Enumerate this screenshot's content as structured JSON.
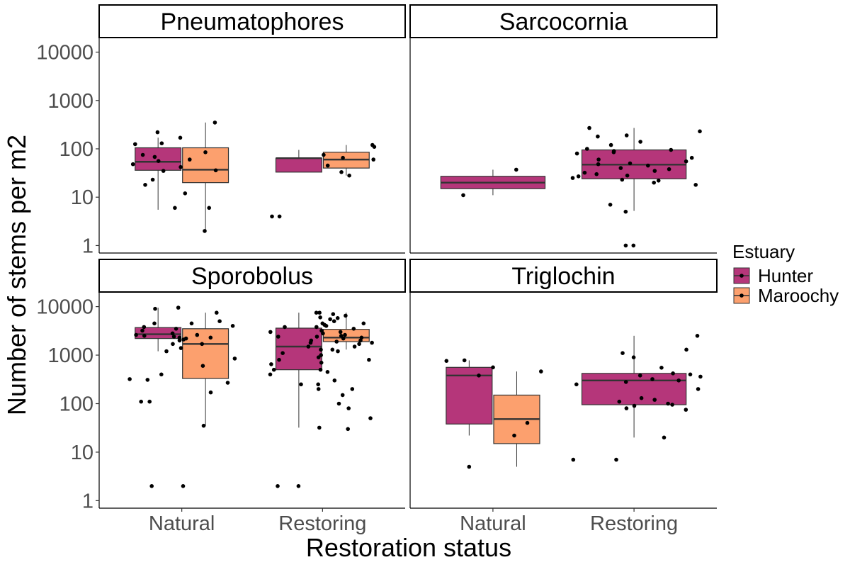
{
  "chart_data": {
    "type": "box",
    "xlabel": "Restoration status",
    "ylabel": "Number of stems per m2",
    "y_scale": "log10",
    "ylim": [
      0.7,
      20000
    ],
    "y_ticks": [
      1,
      10,
      100,
      1000,
      10000
    ],
    "y_tick_labels": [
      "1",
      "10",
      "100",
      "1000",
      "10000"
    ],
    "categories": [
      "Natural",
      "Restoring"
    ],
    "legend": {
      "title": "Estuary",
      "position": "right",
      "items": [
        {
          "name": "Hunter",
          "color": "#b5367a"
        },
        {
          "name": "Maroochy",
          "color": "#fca06e"
        }
      ]
    },
    "grid": false,
    "panels": [
      {
        "name": "Pneumatophores",
        "boxes": [
          {
            "category": "Natural",
            "series": "Hunter",
            "min": 5.5,
            "q1": 36,
            "median": 54,
            "q3": 105,
            "max": 170
          },
          {
            "category": "Natural",
            "series": "Maroochy",
            "min": 2,
            "q1": 20,
            "median": 37,
            "q3": 105,
            "max": 350
          },
          {
            "category": "Restoring",
            "series": "Hunter",
            "min": 33,
            "q1": 33,
            "median": 64,
            "q3": 64,
            "max": 95
          },
          {
            "category": "Restoring",
            "series": "Maroochy",
            "min": 28,
            "q1": 40,
            "median": 60,
            "q3": 85,
            "max": 120
          }
        ],
        "points": [
          {
            "category": "Natural",
            "series": "Hunter",
            "values": [
              220,
              130,
              125,
              75,
              68,
              56,
              48,
              42,
              35,
              23,
              18,
              6
            ]
          },
          {
            "category": "Natural",
            "series": "Maroochy",
            "values": [
              350,
              170,
              85,
              60,
              36,
              12,
              6,
              2
            ]
          },
          {
            "category": "Restoring",
            "series": "Hunter",
            "values": [
              4,
              4
            ]
          },
          {
            "category": "Restoring",
            "series": "Maroochy",
            "values": [
              120,
              110,
              75,
              65,
              60,
              45,
              33,
              28
            ]
          }
        ]
      },
      {
        "name": "Sarcocornia",
        "boxes": [
          {
            "category": "Natural",
            "series": "Hunter",
            "min": 11,
            "q1": 15,
            "median": 20,
            "q3": 27,
            "max": 37
          }
        ],
        "points": [
          {
            "category": "Natural",
            "series": "Hunter",
            "values": [
              37,
              11
            ]
          },
          {
            "category": "Restoring",
            "series": "Hunter",
            "values": [
              270,
              230,
              190,
              180,
              140,
              120,
              100,
              95,
              90,
              85,
              80,
              65,
              60,
              55,
              50,
              48,
              45,
              40,
              38,
              35,
              32,
              30,
              28,
              27,
              25,
              23,
              22,
              20,
              18,
              7,
              5,
              1,
              1
            ]
          }
        ],
        "boxes_restoring": [
          {
            "category": "Restoring",
            "series": "Hunter",
            "min": 5.2,
            "q1": 24,
            "median": 47,
            "q3": 95,
            "max": 270
          }
        ]
      },
      {
        "name": "Sporobolus",
        "boxes": [
          {
            "category": "Natural",
            "series": "Hunter",
            "min": 1200,
            "q1": 2200,
            "median": 2700,
            "q3": 3700,
            "max": 9500
          },
          {
            "category": "Natural",
            "series": "Maroochy",
            "min": 35,
            "q1": 330,
            "median": 1700,
            "q3": 3500,
            "max": 7500
          },
          {
            "category": "Restoring",
            "series": "Hunter",
            "min": 32,
            "q1": 500,
            "median": 1500,
            "q3": 3600,
            "max": 7500
          },
          {
            "category": "Restoring",
            "series": "Maroochy",
            "min": 1300,
            "q1": 1900,
            "median": 2300,
            "q3": 3400,
            "max": 7500
          }
        ],
        "points": [
          {
            "category": "Natural",
            "series": "Hunter",
            "values": [
              9500,
              9000,
              4500,
              3800,
              3200,
              2800,
              2600,
              2500,
              2400,
              2300,
              2200,
              2100,
              2000,
              1700,
              1200,
              400,
              320,
              310,
              110,
              110,
              2
            ]
          },
          {
            "category": "Natural",
            "series": "Maroochy",
            "values": [
              7500,
              5000,
              4500,
              4000,
              3500,
              2600,
              2300,
              1700,
              1400,
              850,
              600,
              270,
              170,
              35,
              2
            ]
          },
          {
            "category": "Restoring",
            "series": "Hunter",
            "values": [
              7500,
              4500,
              3800,
              3000,
              2400,
              2000,
              1800,
              1500,
              1300,
              1100,
              900,
              800,
              650,
              500,
              400,
              250,
              200,
              32,
              2,
              2
            ]
          },
          {
            "category": "Restoring",
            "series": "Maroochy",
            "values": [
              7500,
              7000,
              6500,
              6000,
              5800,
              5500,
              5000,
              4500,
              4200,
              4000,
              3800,
              3500,
              3200,
              3000,
              2800,
              2600,
              2500,
              2400,
              2300,
              2200,
              2000,
              1900,
              1800,
              1700,
              1500,
              1300,
              1200,
              1000,
              800,
              700,
              500,
              450,
              300,
              250,
              200,
              150,
              100,
              80,
              50,
              30
            ]
          }
        ]
      },
      {
        "name": "Triglochin",
        "boxes": [
          {
            "category": "Natural",
            "series": "Hunter",
            "min": 22,
            "q1": 38,
            "median": 380,
            "q3": 560,
            "max": 780
          },
          {
            "category": "Natural",
            "series": "Maroochy",
            "min": 5,
            "q1": 15,
            "median": 48,
            "q3": 150,
            "max": 460
          },
          {
            "category": "Restoring",
            "series": "Hunter",
            "min": 20,
            "q1": 95,
            "median": 300,
            "q3": 420,
            "max": 2500
          }
        ],
        "points": [
          {
            "category": "Natural",
            "series": "Hunter",
            "values": [
              780,
              760,
              560,
              380,
              5
            ]
          },
          {
            "category": "Natural",
            "series": "Maroochy",
            "values": [
              460,
              40,
              22
            ]
          },
          {
            "category": "Restoring",
            "series": "Hunter",
            "values": [
              2500,
              1300,
              1100,
              900,
              550,
              420,
              400,
              380,
              360,
              320,
              300,
              280,
              250,
              200,
              130,
              120,
              110,
              100,
              95,
              90,
              80,
              75,
              20,
              7,
              7
            ]
          }
        ]
      }
    ]
  }
}
